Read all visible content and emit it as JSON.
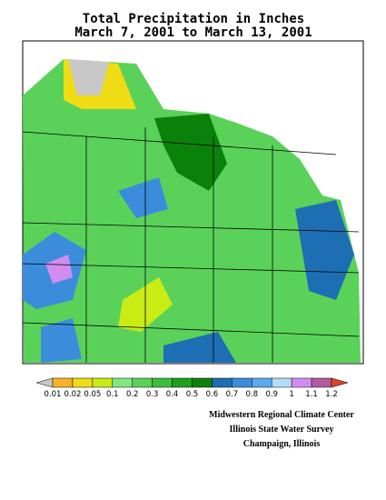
{
  "title": [
    "Total Precipitation in Inches",
    "March 7, 2001 to March 13, 2001"
  ],
  "legend": {
    "labels": [
      "0.01",
      "0.02",
      "0.05",
      "0.1",
      "0.2",
      "0.3",
      "0.4",
      "0.5",
      "0.6",
      "0.7",
      "0.8",
      "0.9",
      "1",
      "1.1",
      "1.2"
    ],
    "colors": [
      "#c8c8c8",
      "#f5b428",
      "#f0dc14",
      "#c8ec14",
      "#82e682",
      "#5ad25a",
      "#3cbe3c",
      "#1ea01e",
      "#0a820a",
      "#1e6eb4",
      "#3c8cdc",
      "#5aaaf0",
      "#b4dcf5",
      "#d28cf0",
      "#b45aa0",
      "#dc4628"
    ]
  },
  "credits": [
    "Midwestern Regional Climate Center",
    "Illinois State Water Survey",
    "Champaign, Illinois"
  ]
}
